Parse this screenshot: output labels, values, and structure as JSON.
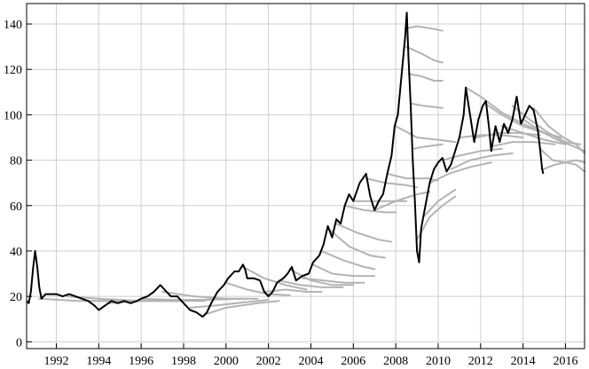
{
  "chart_data": {
    "type": "line",
    "title": "",
    "xlabel": "",
    "ylabel": "",
    "xlim": [
      1990.6,
      2016.9
    ],
    "ylim": [
      -3,
      149
    ],
    "x_ticks": [
      1992,
      1994,
      1996,
      1998,
      2000,
      2002,
      2004,
      2006,
      2008,
      2010,
      2012,
      2014,
      2016
    ],
    "y_ticks": [
      0,
      20,
      40,
      60,
      80,
      100,
      120,
      140
    ],
    "grid": true,
    "legend": "none",
    "colors": {
      "spot": "#000000",
      "futures": "#b3b3b3",
      "grid": "#cfcfcf",
      "frame": "#000000"
    },
    "series": [
      {
        "role": "spot",
        "points": [
          [
            1990.6,
            18
          ],
          [
            1990.7,
            17
          ],
          [
            1990.8,
            22
          ],
          [
            1990.9,
            32
          ],
          [
            1991.0,
            40
          ],
          [
            1991.1,
            33
          ],
          [
            1991.2,
            24
          ],
          [
            1991.3,
            19
          ],
          [
            1991.5,
            21
          ],
          [
            1991.7,
            21
          ],
          [
            1992.0,
            21
          ],
          [
            1992.3,
            20
          ],
          [
            1992.6,
            21
          ],
          [
            1992.9,
            20
          ],
          [
            1993.2,
            19
          ],
          [
            1993.5,
            18
          ],
          [
            1993.8,
            16
          ],
          [
            1994.0,
            14
          ],
          [
            1994.3,
            16
          ],
          [
            1994.6,
            18
          ],
          [
            1994.9,
            17
          ],
          [
            1995.2,
            18
          ],
          [
            1995.5,
            17
          ],
          [
            1995.8,
            18
          ],
          [
            1996.0,
            19
          ],
          [
            1996.3,
            20
          ],
          [
            1996.6,
            22
          ],
          [
            1996.9,
            25
          ],
          [
            1997.1,
            23
          ],
          [
            1997.4,
            20
          ],
          [
            1997.7,
            20
          ],
          [
            1998.0,
            17
          ],
          [
            1998.3,
            14
          ],
          [
            1998.6,
            13
          ],
          [
            1998.9,
            11
          ],
          [
            1999.1,
            13
          ],
          [
            1999.3,
            17
          ],
          [
            1999.6,
            22
          ],
          [
            1999.9,
            25
          ],
          [
            2000.1,
            28
          ],
          [
            2000.4,
            31
          ],
          [
            2000.6,
            31
          ],
          [
            2000.8,
            34
          ],
          [
            2000.9,
            32
          ],
          [
            2001.0,
            28
          ],
          [
            2001.3,
            28
          ],
          [
            2001.6,
            27
          ],
          [
            2001.8,
            22
          ],
          [
            2002.0,
            20
          ],
          [
            2002.2,
            22
          ],
          [
            2002.4,
            26
          ],
          [
            2002.7,
            28
          ],
          [
            2002.9,
            30
          ],
          [
            2003.1,
            33
          ],
          [
            2003.3,
            27
          ],
          [
            2003.6,
            29
          ],
          [
            2003.9,
            30
          ],
          [
            2004.1,
            35
          ],
          [
            2004.4,
            38
          ],
          [
            2004.6,
            43
          ],
          [
            2004.8,
            51
          ],
          [
            2005.0,
            46
          ],
          [
            2005.2,
            54
          ],
          [
            2005.4,
            52
          ],
          [
            2005.6,
            60
          ],
          [
            2005.8,
            65
          ],
          [
            2006.0,
            62
          ],
          [
            2006.3,
            70
          ],
          [
            2006.6,
            74
          ],
          [
            2006.8,
            64
          ],
          [
            2007.0,
            58
          ],
          [
            2007.2,
            62
          ],
          [
            2007.4,
            65
          ],
          [
            2007.6,
            74
          ],
          [
            2007.8,
            82
          ],
          [
            2007.95,
            95
          ],
          [
            2008.1,
            100
          ],
          [
            2008.3,
            120
          ],
          [
            2008.45,
            135
          ],
          [
            2008.52,
            145
          ],
          [
            2008.6,
            125
          ],
          [
            2008.7,
            105
          ],
          [
            2008.8,
            80
          ],
          [
            2008.9,
            62
          ],
          [
            2009.0,
            40
          ],
          [
            2009.1,
            35
          ],
          [
            2009.2,
            50
          ],
          [
            2009.4,
            60
          ],
          [
            2009.6,
            70
          ],
          [
            2009.8,
            76
          ],
          [
            2010.0,
            79
          ],
          [
            2010.2,
            81
          ],
          [
            2010.4,
            75
          ],
          [
            2010.6,
            78
          ],
          [
            2010.8,
            84
          ],
          [
            2011.0,
            90
          ],
          [
            2011.2,
            100
          ],
          [
            2011.3,
            112
          ],
          [
            2011.5,
            100
          ],
          [
            2011.7,
            88
          ],
          [
            2011.9,
            98
          ],
          [
            2012.1,
            104
          ],
          [
            2012.25,
            106
          ],
          [
            2012.4,
            94
          ],
          [
            2012.5,
            84
          ],
          [
            2012.7,
            95
          ],
          [
            2012.9,
            88
          ],
          [
            2013.1,
            96
          ],
          [
            2013.3,
            92
          ],
          [
            2013.5,
            98
          ],
          [
            2013.7,
            108
          ],
          [
            2013.9,
            96
          ],
          [
            2014.1,
            100
          ],
          [
            2014.3,
            104
          ],
          [
            2014.5,
            102
          ],
          [
            2014.7,
            93
          ],
          [
            2014.8,
            85
          ],
          [
            2014.9,
            76
          ],
          [
            2014.95,
            74
          ]
        ]
      }
    ],
    "futures_curves": [
      [
        [
          1991.2,
          19
        ],
        [
          1993,
          18
        ],
        [
          1995,
          18
        ],
        [
          1997,
          18
        ],
        [
          1999,
          18.5
        ]
      ],
      [
        [
          1992.5,
          20
        ],
        [
          1994,
          19
        ],
        [
          1996,
          18
        ],
        [
          1998,
          18
        ],
        [
          2000,
          19
        ]
      ],
      [
        [
          1993.5,
          18
        ],
        [
          1995,
          18
        ],
        [
          1997,
          18
        ],
        [
          1999,
          18
        ]
      ],
      [
        [
          1994.5,
          17
        ],
        [
          1996,
          18
        ],
        [
          1998,
          18
        ],
        [
          2000,
          19
        ]
      ],
      [
        [
          1996.0,
          19
        ],
        [
          1997.5,
          18.5
        ],
        [
          1999,
          18.5
        ],
        [
          2001,
          19
        ]
      ],
      [
        [
          1997.0,
          22
        ],
        [
          1998.5,
          20
        ],
        [
          2000,
          19
        ],
        [
          2001.5,
          19
        ]
      ],
      [
        [
          1998.3,
          15
        ],
        [
          1999.5,
          16
        ],
        [
          2001,
          17.5
        ],
        [
          2002,
          18.5
        ]
      ],
      [
        [
          1999.0,
          12
        ],
        [
          2000,
          15
        ],
        [
          2001.5,
          17
        ],
        [
          2002.5,
          18
        ]
      ],
      [
        [
          2000.0,
          26
        ],
        [
          2001,
          23
        ],
        [
          2002,
          21
        ],
        [
          2003,
          20.5
        ]
      ],
      [
        [
          2000.8,
          33
        ],
        [
          2001.8,
          28
        ],
        [
          2002.8,
          25
        ],
        [
          2003.8,
          23
        ]
      ],
      [
        [
          2001.8,
          22
        ],
        [
          2002.8,
          23
        ],
        [
          2003.8,
          22
        ],
        [
          2004.5,
          22
        ]
      ],
      [
        [
          2002.5,
          27
        ],
        [
          2003.5,
          25
        ],
        [
          2004.5,
          24
        ],
        [
          2005.5,
          24
        ]
      ],
      [
        [
          2003.0,
          32
        ],
        [
          2004,
          27
        ],
        [
          2005,
          25
        ],
        [
          2006,
          25
        ]
      ],
      [
        [
          2003.6,
          28
        ],
        [
          2004.6,
          27
        ],
        [
          2005.6,
          26
        ],
        [
          2006.5,
          26
        ]
      ],
      [
        [
          2004.1,
          34
        ],
        [
          2005,
          30
        ],
        [
          2006,
          29
        ],
        [
          2007,
          29
        ]
      ],
      [
        [
          2004.5,
          40
        ],
        [
          2005.5,
          36
        ],
        [
          2006.5,
          33
        ],
        [
          2007,
          32
        ]
      ],
      [
        [
          2004.8,
          50
        ],
        [
          2005.8,
          42
        ],
        [
          2006.8,
          38
        ],
        [
          2007.5,
          37
        ]
      ],
      [
        [
          2005.2,
          52
        ],
        [
          2006.2,
          48
        ],
        [
          2007.2,
          45
        ],
        [
          2007.8,
          44
        ]
      ],
      [
        [
          2005.6,
          60
        ],
        [
          2006.5,
          58
        ],
        [
          2007.5,
          57
        ],
        [
          2008,
          57
        ]
      ],
      [
        [
          2006.0,
          62
        ],
        [
          2007,
          62
        ],
        [
          2008,
          62
        ],
        [
          2008.5,
          62
        ]
      ],
      [
        [
          2006.6,
          72
        ],
        [
          2007.5,
          70
        ],
        [
          2008.5,
          69
        ],
        [
          2009,
          68
        ]
      ],
      [
        [
          2007.0,
          58
        ],
        [
          2008,
          62
        ],
        [
          2009,
          65
        ],
        [
          2009.6,
          66
        ]
      ],
      [
        [
          2007.6,
          74
        ],
        [
          2008.5,
          72
        ],
        [
          2009.5,
          72
        ],
        [
          2010,
          71
        ]
      ],
      [
        [
          2008.0,
          95
        ],
        [
          2009,
          90
        ],
        [
          2010,
          89
        ],
        [
          2010.8,
          88
        ]
      ],
      [
        [
          2008.45,
          138
        ],
        [
          2009,
          139
        ],
        [
          2009.7,
          138
        ],
        [
          2010.2,
          137
        ]
      ],
      [
        [
          2008.5,
          130
        ],
        [
          2009.2,
          127
        ],
        [
          2009.8,
          124
        ],
        [
          2010.2,
          123
        ]
      ],
      [
        [
          2008.6,
          118
        ],
        [
          2009.2,
          117
        ],
        [
          2009.8,
          115
        ],
        [
          2010.2,
          115
        ]
      ],
      [
        [
          2008.7,
          105
        ],
        [
          2009.3,
          104
        ],
        [
          2010.2,
          103
        ]
      ],
      [
        [
          2008.8,
          85
        ],
        [
          2009.4,
          86
        ],
        [
          2010.2,
          87
        ]
      ],
      [
        [
          2009.0,
          45
        ],
        [
          2009.6,
          55
        ],
        [
          2010.2,
          60
        ],
        [
          2010.8,
          64
        ]
      ],
      [
        [
          2009.3,
          55
        ],
        [
          2010,
          62
        ],
        [
          2010.8,
          67
        ]
      ],
      [
        [
          2009.6,
          70
        ],
        [
          2010.5,
          74
        ],
        [
          2011.5,
          77
        ],
        [
          2012.5,
          79
        ]
      ],
      [
        [
          2010.2,
          80
        ],
        [
          2011,
          82
        ],
        [
          2012,
          84
        ],
        [
          2013,
          85
        ]
      ],
      [
        [
          2010.6,
          76
        ],
        [
          2011.5,
          80
        ],
        [
          2012.5,
          82
        ],
        [
          2013.5,
          83
        ]
      ],
      [
        [
          2011.0,
          90
        ],
        [
          2012,
          91
        ],
        [
          2013,
          91
        ],
        [
          2014,
          90
        ]
      ],
      [
        [
          2011.3,
          112
        ],
        [
          2012,
          108
        ],
        [
          2013,
          101
        ],
        [
          2014,
          96
        ],
        [
          2015,
          92
        ]
      ],
      [
        [
          2011.8,
          90
        ],
        [
          2012.8,
          92
        ],
        [
          2013.8,
          92
        ],
        [
          2014.8,
          91
        ]
      ],
      [
        [
          2012.2,
          105
        ],
        [
          2013,
          100
        ],
        [
          2014,
          95
        ],
        [
          2015,
          92
        ],
        [
          2015.8,
          90
        ]
      ],
      [
        [
          2012.5,
          86
        ],
        [
          2013.5,
          88
        ],
        [
          2014.5,
          88
        ],
        [
          2015.5,
          87
        ]
      ],
      [
        [
          2013.0,
          95
        ],
        [
          2014,
          92
        ],
        [
          2015,
          89
        ],
        [
          2016,
          87
        ]
      ],
      [
        [
          2013.5,
          104
        ],
        [
          2014.3,
          98
        ],
        [
          2015.2,
          92
        ],
        [
          2016,
          88
        ],
        [
          2016.7,
          87
        ]
      ],
      [
        [
          2014.0,
          98
        ],
        [
          2014.8,
          93
        ],
        [
          2015.6,
          89
        ],
        [
          2016.4,
          86
        ],
        [
          2016.9,
          84
        ]
      ],
      [
        [
          2014.5,
          103
        ],
        [
          2015.2,
          95
        ],
        [
          2015.9,
          90
        ],
        [
          2016.5,
          87
        ],
        [
          2016.9,
          83
        ]
      ],
      [
        [
          2014.8,
          85
        ],
        [
          2015.4,
          80
        ],
        [
          2016.0,
          79
        ],
        [
          2016.5,
          78
        ],
        [
          2016.9,
          75
        ]
      ],
      [
        [
          2014.95,
          76
        ],
        [
          2015.5,
          78
        ],
        [
          2016.0,
          79
        ],
        [
          2016.5,
          80
        ],
        [
          2016.9,
          79
        ]
      ]
    ]
  }
}
